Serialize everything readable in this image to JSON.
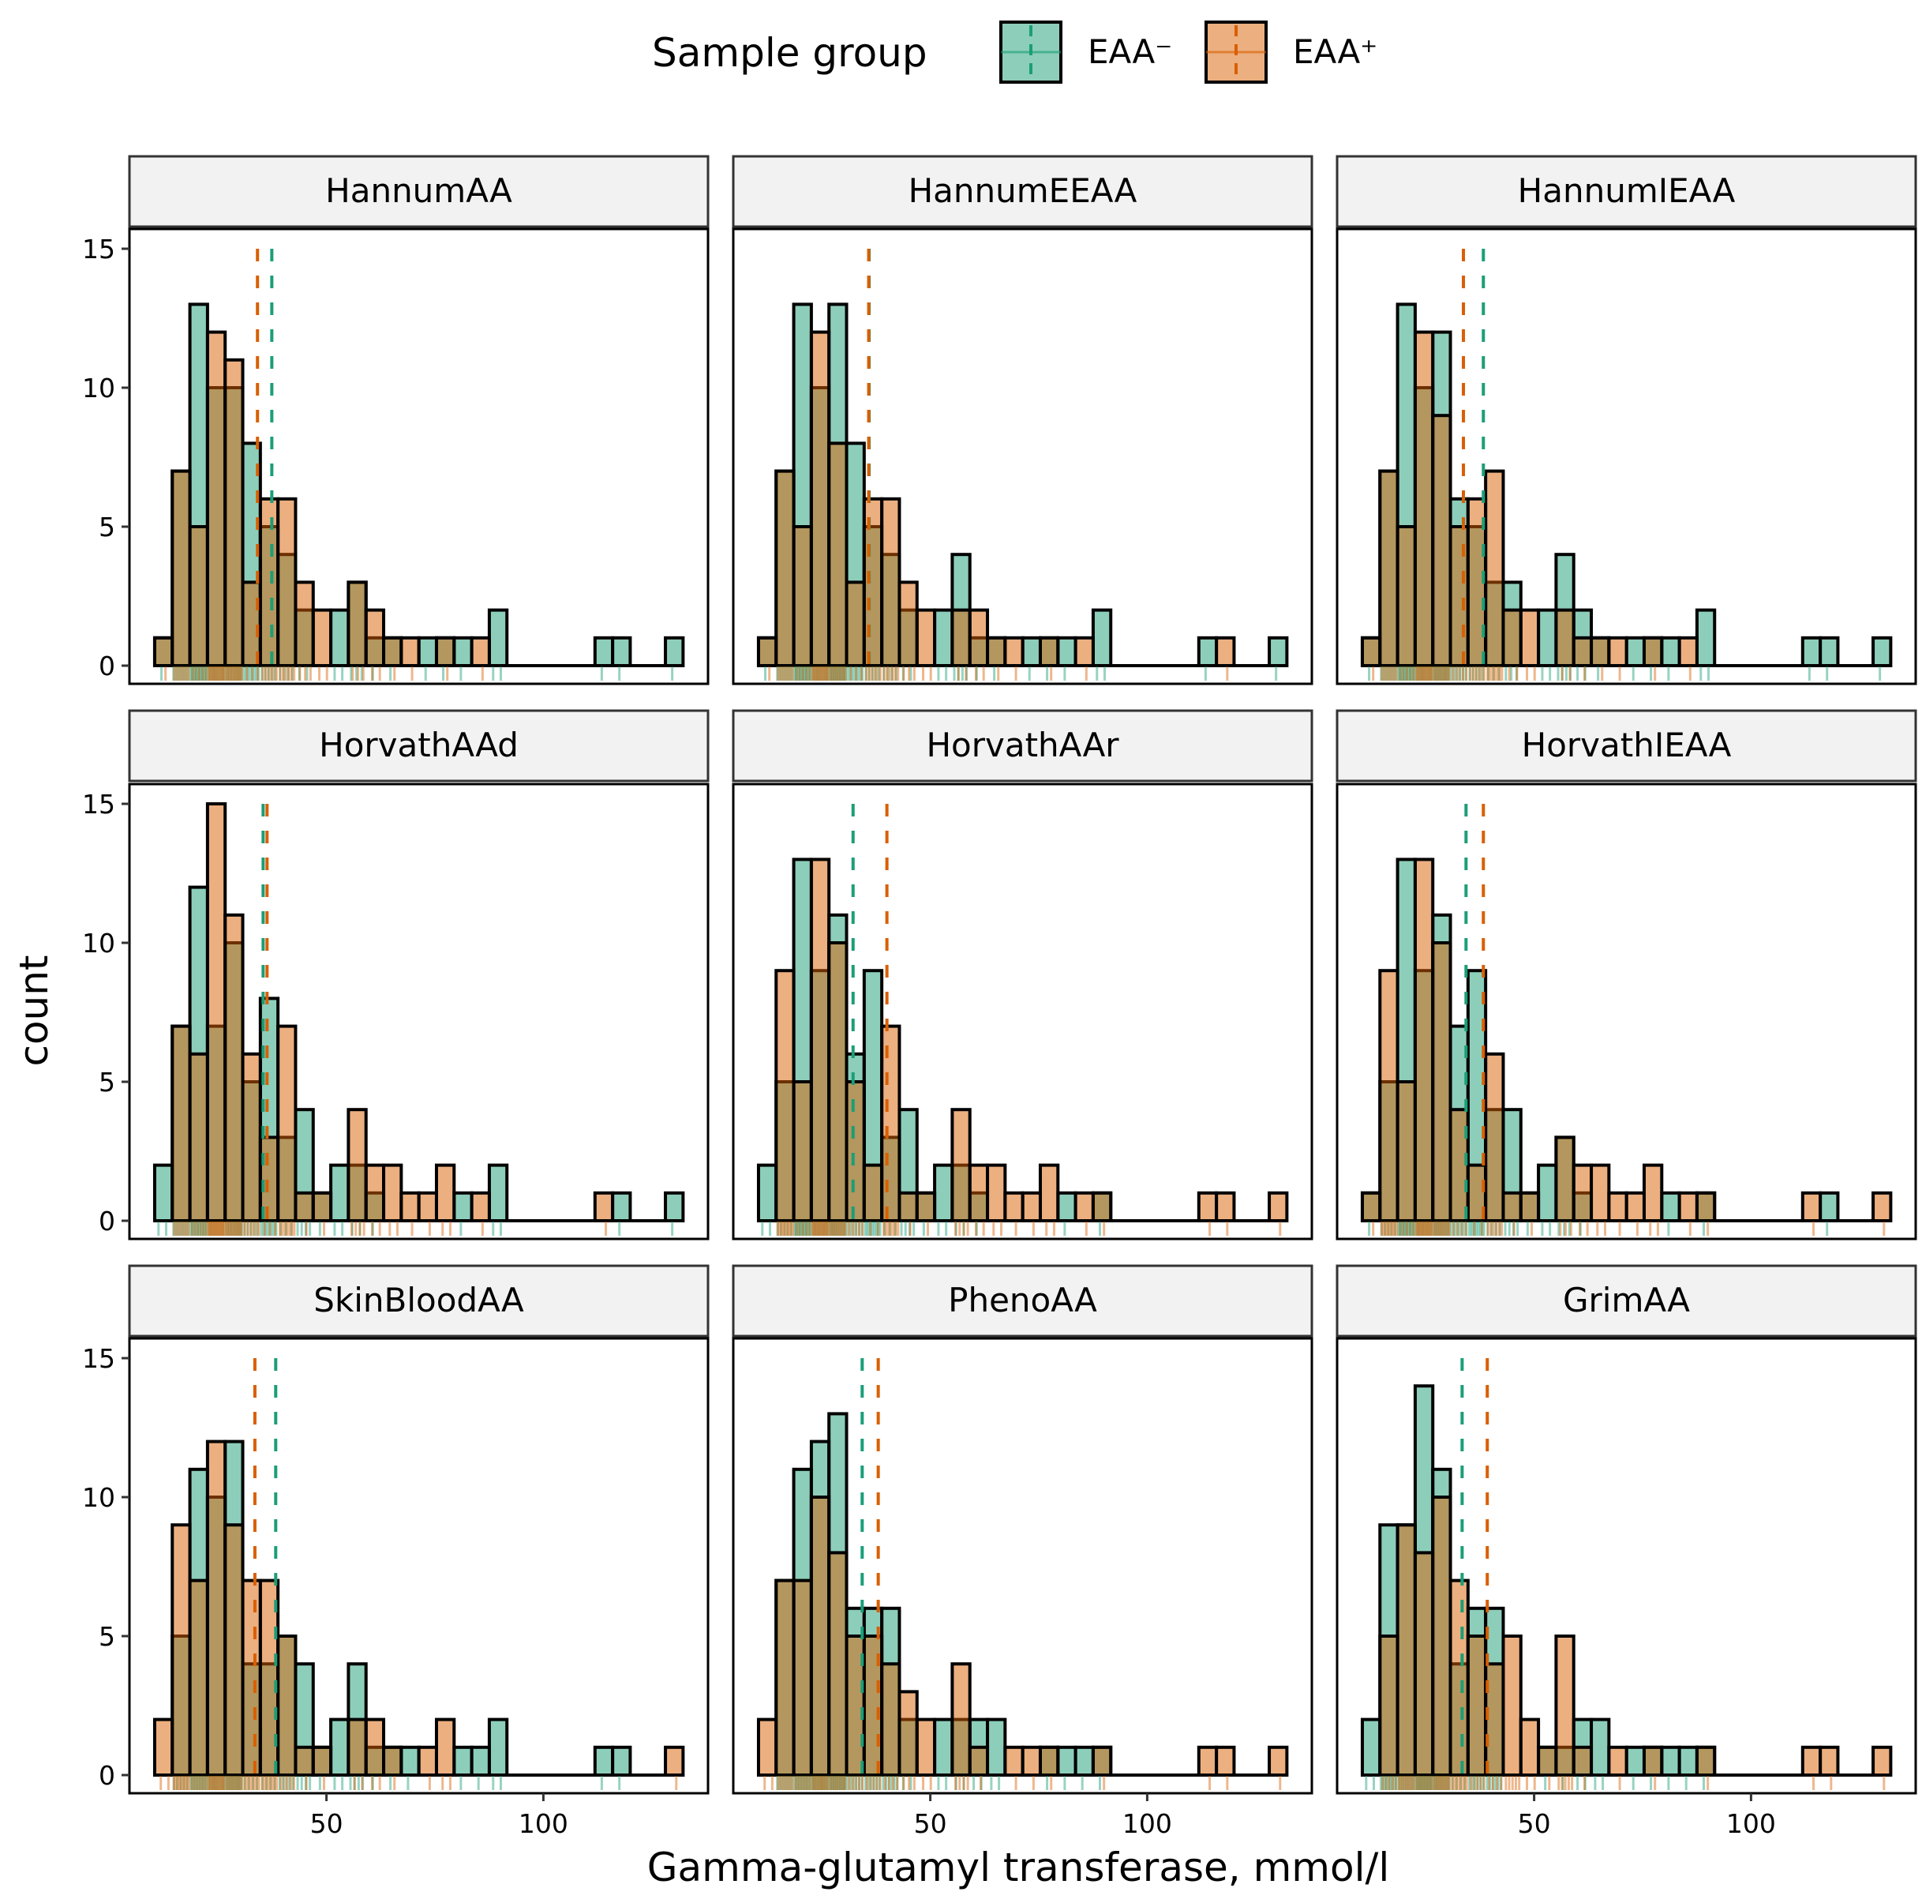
{
  "legend": {
    "title": "Sample group",
    "items": [
      {
        "label": "EAA⁻",
        "color": "#1b9e77"
      },
      {
        "label": "EAA⁺",
        "color": "#d95f02"
      }
    ]
  },
  "chart_data": {
    "type": "histogram",
    "facet_layout": "3x3",
    "xlabel": "Gamma-glutamyl transferase, mmol/l",
    "ylabel": "count",
    "x_ticks": [
      50,
      100
    ],
    "y_ticks": [
      0,
      5,
      10,
      15
    ],
    "ylim": [
      0,
      15.5
    ],
    "xlim": [
      4.5,
      137
    ],
    "bin_start": 10.4,
    "bin_width": 4.06,
    "series_names": [
      "EAA⁻",
      "EAA⁺"
    ],
    "colors": {
      "EAA-": "#1b9e77",
      "EAA+": "#d95f02"
    },
    "mean_lines": "dashed vertical line per group",
    "panels": [
      {
        "title": "HannumAA",
        "mean_neg": 37.4,
        "mean_pos": 34.1,
        "neg": [
          1,
          7,
          13,
          10,
          10,
          8,
          5,
          4,
          2,
          0,
          2,
          3,
          1,
          1,
          0,
          1,
          1,
          1,
          0,
          2,
          0,
          0,
          0,
          0,
          0,
          1,
          1,
          0,
          0,
          1
        ],
        "pos": [
          1,
          7,
          5,
          12,
          11,
          3,
          6,
          6,
          3,
          2,
          0,
          3,
          2,
          1,
          1,
          0,
          1,
          0,
          1,
          0,
          0,
          0,
          0,
          0,
          0,
          0,
          0,
          0,
          0,
          0
        ]
      },
      {
        "title": "HannumEEAA",
        "mean_neg": 35.9,
        "mean_pos": 35.8,
        "neg": [
          1,
          7,
          13,
          10,
          13,
          8,
          5,
          4,
          2,
          0,
          2,
          4,
          1,
          1,
          0,
          1,
          1,
          1,
          0,
          2,
          0,
          0,
          0,
          0,
          0,
          1,
          0,
          0,
          0,
          1
        ],
        "pos": [
          1,
          7,
          5,
          12,
          8,
          3,
          6,
          6,
          3,
          2,
          0,
          2,
          2,
          1,
          1,
          0,
          1,
          0,
          1,
          0,
          0,
          0,
          0,
          0,
          0,
          0,
          1,
          0,
          0,
          0
        ]
      },
      {
        "title": "HannumIEAA",
        "mean_neg": 38.3,
        "mean_pos": 33.7,
        "neg": [
          1,
          7,
          13,
          10,
          12,
          6,
          5,
          3,
          3,
          0,
          2,
          4,
          2,
          1,
          0,
          1,
          1,
          1,
          0,
          2,
          0,
          0,
          0,
          0,
          0,
          1,
          1,
          0,
          0,
          1
        ],
        "pos": [
          1,
          7,
          5,
          12,
          9,
          5,
          6,
          7,
          2,
          2,
          0,
          2,
          1,
          1,
          1,
          0,
          1,
          0,
          1,
          0,
          0,
          0,
          0,
          0,
          0,
          0,
          0,
          0,
          0,
          0
        ]
      },
      {
        "title": "HorvathAAd",
        "mean_neg": 35.4,
        "mean_pos": 36.3,
        "neg": [
          2,
          7,
          12,
          7,
          10,
          5,
          8,
          3,
          4,
          1,
          2,
          2,
          1,
          0,
          0,
          0,
          0,
          1,
          0,
          2,
          0,
          0,
          0,
          0,
          0,
          0,
          1,
          0,
          0,
          1
        ],
        "pos": [
          0,
          7,
          6,
          15,
          11,
          6,
          3,
          7,
          1,
          1,
          0,
          4,
          2,
          2,
          1,
          1,
          2,
          0,
          1,
          0,
          0,
          0,
          0,
          0,
          0,
          1,
          0,
          0,
          0,
          0
        ]
      },
      {
        "title": "HorvathAAr",
        "mean_neg": 32.2,
        "mean_pos": 40.0,
        "neg": [
          2,
          5,
          13,
          9,
          11,
          6,
          9,
          3,
          4,
          1,
          2,
          2,
          1,
          0,
          0,
          0,
          0,
          1,
          0,
          1,
          0,
          0,
          0,
          0,
          0,
          0,
          0,
          0,
          0,
          0
        ],
        "pos": [
          0,
          9,
          5,
          13,
          10,
          5,
          2,
          7,
          1,
          1,
          0,
          4,
          2,
          2,
          1,
          1,
          2,
          0,
          1,
          1,
          0,
          0,
          0,
          0,
          0,
          1,
          1,
          0,
          0,
          1
        ]
      },
      {
        "title": "HorvathIEAA",
        "mean_neg": 34.3,
        "mean_pos": 38.3,
        "neg": [
          1,
          5,
          13,
          9,
          11,
          7,
          9,
          4,
          4,
          1,
          2,
          3,
          1,
          0,
          0,
          0,
          0,
          1,
          0,
          1,
          0,
          0,
          0,
          0,
          0,
          0,
          1,
          0,
          0,
          0
        ],
        "pos": [
          1,
          9,
          5,
          13,
          10,
          4,
          2,
          6,
          1,
          1,
          0,
          3,
          2,
          2,
          1,
          1,
          2,
          0,
          1,
          1,
          0,
          0,
          0,
          0,
          0,
          1,
          0,
          0,
          0,
          1
        ]
      },
      {
        "title": "SkinBloodAA",
        "mean_neg": 38.3,
        "mean_pos": 33.5,
        "neg": [
          0,
          5,
          11,
          10,
          12,
          4,
          4,
          5,
          4,
          1,
          2,
          4,
          1,
          1,
          1,
          0,
          0,
          1,
          1,
          2,
          0,
          0,
          0,
          0,
          0,
          1,
          1,
          0,
          0,
          0
        ],
        "pos": [
          2,
          9,
          7,
          12,
          9,
          7,
          7,
          5,
          1,
          1,
          0,
          2,
          2,
          1,
          0,
          1,
          2,
          0,
          0,
          0,
          0,
          0,
          0,
          0,
          0,
          0,
          0,
          0,
          0,
          1
        ]
      },
      {
        "title": "PhenoAA",
        "mean_neg": 34.3,
        "mean_pos": 38.0,
        "neg": [
          0,
          7,
          11,
          12,
          13,
          6,
          6,
          6,
          2,
          0,
          2,
          2,
          2,
          2,
          0,
          0,
          1,
          1,
          1,
          1,
          0,
          0,
          0,
          0,
          0,
          0,
          0,
          0,
          0,
          0
        ],
        "pos": [
          2,
          7,
          7,
          10,
          8,
          5,
          5,
          4,
          3,
          2,
          0,
          4,
          1,
          0,
          1,
          1,
          1,
          0,
          0,
          1,
          0,
          0,
          0,
          0,
          0,
          1,
          1,
          0,
          0,
          1
        ]
      },
      {
        "title": "GrimAA",
        "mean_neg": 33.4,
        "mean_pos": 39.2,
        "neg": [
          2,
          9,
          9,
          14,
          11,
          4,
          6,
          6,
          0,
          0,
          1,
          1,
          2,
          2,
          0,
          1,
          1,
          1,
          1,
          1,
          0,
          0,
          0,
          0,
          0,
          0,
          0,
          0,
          0,
          0
        ],
        "pos": [
          0,
          5,
          9,
          8,
          10,
          7,
          5,
          4,
          5,
          2,
          1,
          5,
          1,
          0,
          1,
          0,
          1,
          0,
          0,
          1,
          0,
          0,
          0,
          0,
          0,
          1,
          1,
          0,
          0,
          1
        ]
      }
    ]
  }
}
